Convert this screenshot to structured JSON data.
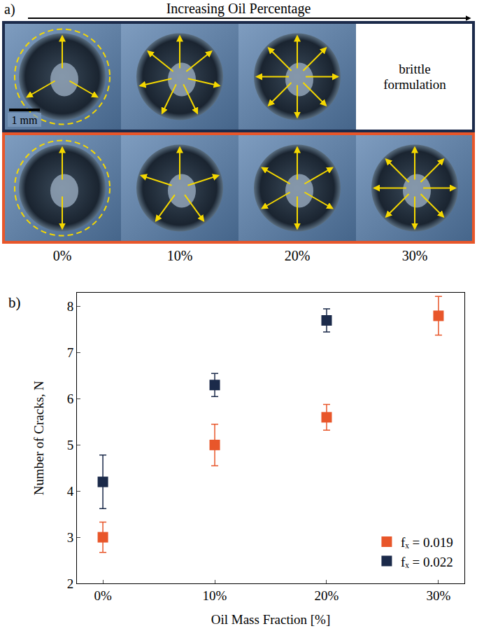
{
  "panel_a": {
    "label": "a)",
    "header": "Increasing Oil Percentage",
    "scale_bar": "1 mm",
    "empty_cell": "brittle formulation",
    "columns": [
      "0%",
      "10%",
      "20%",
      "30%"
    ]
  },
  "chart_data": {
    "type": "scatter",
    "annotations": [
      "b)"
    ],
    "x_label": "Oil Mass Fraction [%]",
    "y_label": "Number of Cracks, N",
    "categories": [
      "0%",
      "10%",
      "20%",
      "30%"
    ],
    "series": [
      {
        "name": "fₓ = 0.019",
        "color": "#e8562a",
        "marker": "square",
        "values": [
          3.0,
          5.0,
          5.6,
          7.8
        ],
        "error": [
          0.33,
          0.45,
          0.28,
          0.42
        ]
      },
      {
        "name": "fₓ = 0.022",
        "color": "#1b2a4a",
        "marker": "square",
        "values": [
          4.2,
          6.3,
          7.7,
          null
        ],
        "error": [
          0.58,
          0.25,
          0.25,
          null
        ]
      }
    ],
    "ylim": [
      2,
      8.3
    ],
    "yticks": [
      2,
      3,
      4,
      5,
      6,
      7,
      8
    ],
    "grid": false,
    "legend": "lower right"
  }
}
